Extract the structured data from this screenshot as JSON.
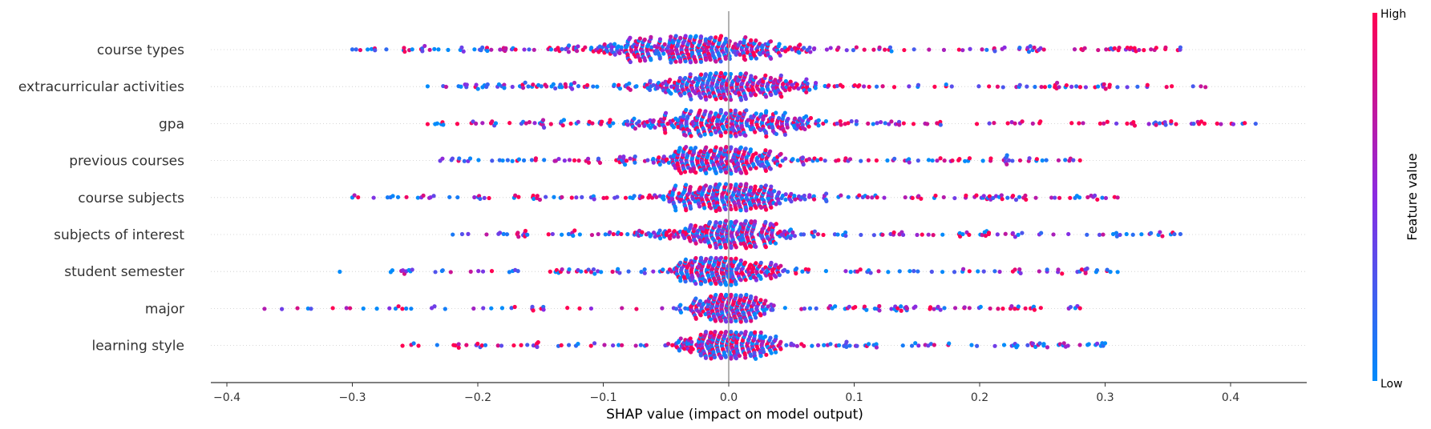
{
  "chart_data": {
    "type": "scatter",
    "subtype": "shap-beeswarm",
    "xlabel": "SHAP value (impact on model output)",
    "xlim": [
      -0.42,
      0.46
    ],
    "xticks": [
      -0.4,
      -0.3,
      -0.2,
      -0.1,
      0.0,
      0.1,
      0.2,
      0.3,
      0.4
    ],
    "xtick_labels": [
      "−0.4",
      "−0.3",
      "−0.2",
      "−0.1",
      "0.0",
      "0.1",
      "0.2",
      "0.3",
      "0.4"
    ],
    "grid": false,
    "zero_line": true,
    "colorbar": {
      "title": "Feature value",
      "high_label": "High",
      "low_label": "Low",
      "high_color": "#ff0052",
      "mid_color": "#8a2be2",
      "low_color": "#008bfb"
    },
    "features": [
      {
        "name": "course types",
        "min": -0.3,
        "max": 0.36,
        "spread": 0.04,
        "center": -0.025,
        "n": 560,
        "bias": 0.2
      },
      {
        "name": "extracurricular activities",
        "min": -0.24,
        "max": 0.38,
        "spread": 0.032,
        "center": -0.005,
        "n": 500,
        "bias": 0.1
      },
      {
        "name": "gpa",
        "min": -0.24,
        "max": 0.42,
        "spread": 0.034,
        "center": 0.0,
        "n": 500,
        "bias": 0.15
      },
      {
        "name": "previous courses",
        "min": -0.23,
        "max": 0.28,
        "spread": 0.026,
        "center": -0.005,
        "n": 440,
        "bias": 0.05
      },
      {
        "name": "course subjects",
        "min": -0.3,
        "max": 0.31,
        "spread": 0.03,
        "center": 0.0,
        "n": 460,
        "bias": 0.1
      },
      {
        "name": "subjects of interest",
        "min": -0.22,
        "max": 0.36,
        "spread": 0.026,
        "center": 0.0,
        "n": 440,
        "bias": -0.05
      },
      {
        "name": "student semester",
        "min": -0.31,
        "max": 0.31,
        "spread": 0.022,
        "center": -0.005,
        "n": 420,
        "bias": 0.0
      },
      {
        "name": "major",
        "min": -0.37,
        "max": 0.28,
        "spread": 0.016,
        "center": 0.0,
        "n": 400,
        "bias": 0.0
      },
      {
        "name": "learning style",
        "min": -0.26,
        "max": 0.3,
        "spread": 0.02,
        "center": 0.0,
        "n": 420,
        "bias": -0.25
      }
    ]
  }
}
